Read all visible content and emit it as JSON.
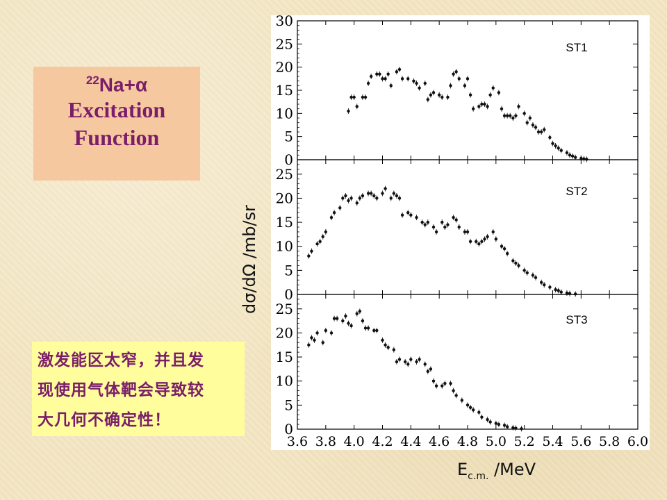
{
  "title_box": {
    "mass_number": "22",
    "reaction": "Na+α",
    "line2": "Excitation",
    "line3": "Function"
  },
  "note": {
    "lines": [
      "激发能区太窄，并且发",
      "现使用气体靶会导致较",
      "大几何不确定性！"
    ]
  },
  "axes": {
    "ylabel": "dσ/dΩ /mb/sr",
    "xlabel_main": "E",
    "xlabel_sub": "c.m.",
    "xlabel_unit": " /MeV"
  },
  "chart_data": [
    {
      "type": "scatter",
      "panel": "ST1",
      "x_range": [
        3.6,
        6.0
      ],
      "ylim": [
        0,
        30
      ],
      "y_ticks": [
        0,
        5,
        10,
        15,
        20,
        25,
        30
      ],
      "x": [
        3.96,
        3.98,
        4.0,
        4.02,
        4.06,
        4.08,
        4.1,
        4.12,
        4.16,
        4.18,
        4.2,
        4.22,
        4.24,
        4.26,
        4.3,
        4.32,
        4.34,
        4.38,
        4.42,
        4.44,
        4.46,
        4.5,
        4.52,
        4.54,
        4.56,
        4.6,
        4.62,
        4.66,
        4.68,
        4.7,
        4.72,
        4.74,
        4.78,
        4.8,
        4.82,
        4.84,
        4.88,
        4.9,
        4.92,
        4.94,
        4.96,
        4.98,
        5.02,
        5.04,
        5.06,
        5.08,
        5.1,
        5.12,
        5.14,
        5.16,
        5.2,
        5.22,
        5.24,
        5.26,
        5.28,
        5.3,
        5.32,
        5.34,
        5.38,
        5.4,
        5.42,
        5.44,
        5.46,
        5.5,
        5.52,
        5.54,
        5.56,
        5.6,
        5.62,
        5.64,
        5.66,
        5.68,
        5.7,
        5.72,
        5.74,
        5.76,
        5.8,
        5.82,
        5.84
      ],
      "y": [
        10.5,
        13.5,
        13.5,
        11.5,
        13.5,
        13.5,
        16.5,
        18.0,
        18.5,
        18.5,
        17.5,
        17.5,
        18.5,
        16.0,
        19.0,
        19.5,
        17.5,
        17.5,
        17.0,
        16.5,
        15.5,
        16.5,
        13.0,
        14.0,
        14.5,
        14.0,
        13.5,
        13.5,
        16.0,
        18.5,
        19.0,
        17.5,
        16.0,
        17.5,
        14.0,
        11.0,
        11.5,
        12.0,
        12.0,
        11.5,
        14.0,
        15.5,
        14.5,
        11.0,
        9.5,
        9.5,
        9.5,
        9.0,
        9.5,
        11.5,
        10.0,
        8.0,
        9.0,
        7.5,
        7.0,
        6.0,
        6.0,
        6.5,
        4.8,
        3.5,
        3.0,
        2.5,
        2.0,
        1.5,
        1.0,
        0.8,
        0.5,
        0.3,
        0.2,
        0.1,
        0.0,
        0.0,
        0.0,
        0.0,
        0.0,
        0.0,
        0.0,
        0.0,
        0.0
      ]
    },
    {
      "type": "scatter",
      "panel": "ST2",
      "x_range": [
        3.6,
        6.0
      ],
      "ylim": [
        0,
        28
      ],
      "y_ticks": [
        0,
        5,
        10,
        15,
        20,
        25
      ],
      "x": [
        3.68,
        3.7,
        3.74,
        3.76,
        3.78,
        3.8,
        3.84,
        3.86,
        3.9,
        3.92,
        3.94,
        3.96,
        3.98,
        4.02,
        4.04,
        4.06,
        4.1,
        4.12,
        4.14,
        4.16,
        4.2,
        4.22,
        4.26,
        4.28,
        4.3,
        4.32,
        4.34,
        4.38,
        4.4,
        4.44,
        4.48,
        4.5,
        4.52,
        4.56,
        4.58,
        4.62,
        4.64,
        4.66,
        4.7,
        4.72,
        4.74,
        4.78,
        4.8,
        4.82,
        4.86,
        4.88,
        4.9,
        4.92,
        4.94,
        4.98,
        5.0,
        5.04,
        5.06,
        5.08,
        5.12,
        5.14,
        5.16,
        5.2,
        5.22,
        5.26,
        5.28,
        5.32,
        5.34,
        5.38,
        5.42,
        5.44,
        5.46,
        5.5,
        5.52,
        5.56,
        5.6,
        5.62,
        5.66,
        5.7,
        5.72,
        5.76,
        5.8,
        5.82,
        5.84
      ],
      "y": [
        8.0,
        9.0,
        10.5,
        11.0,
        12.0,
        13.0,
        16.0,
        17.0,
        18.0,
        20.0,
        20.5,
        19.5,
        20.0,
        19.0,
        20.0,
        20.5,
        21.0,
        21.0,
        20.5,
        20.0,
        21.0,
        22.0,
        20.0,
        21.0,
        20.5,
        20.0,
        16.5,
        17.0,
        16.5,
        16.0,
        15.0,
        14.5,
        15.0,
        14.0,
        13.0,
        15.0,
        14.0,
        14.5,
        16.0,
        15.5,
        14.0,
        13.0,
        13.0,
        11.0,
        11.0,
        10.5,
        11.0,
        11.5,
        12.0,
        13.0,
        11.5,
        10.0,
        9.5,
        8.5,
        7.0,
        6.5,
        6.0,
        5.0,
        4.5,
        4.0,
        3.5,
        2.5,
        2.0,
        1.5,
        1.0,
        0.8,
        0.5,
        0.3,
        0.2,
        0.1,
        0.0,
        0.0,
        0.0,
        0.0,
        0.0,
        0.0,
        0.0,
        0.0,
        0.0
      ]
    },
    {
      "type": "scatter",
      "panel": "ST3",
      "x_range": [
        3.6,
        6.0
      ],
      "ylim": [
        0,
        28
      ],
      "y_ticks": [
        0,
        5,
        10,
        15,
        20,
        25
      ],
      "x": [
        3.68,
        3.7,
        3.72,
        3.74,
        3.78,
        3.8,
        3.84,
        3.86,
        3.88,
        3.92,
        3.94,
        3.96,
        3.98,
        4.02,
        4.04,
        4.06,
        4.08,
        4.1,
        4.14,
        4.16,
        4.2,
        4.22,
        4.24,
        4.28,
        4.3,
        4.32,
        4.36,
        4.38,
        4.4,
        4.44,
        4.46,
        4.5,
        4.52,
        4.54,
        4.56,
        4.58,
        4.62,
        4.64,
        4.68,
        4.7,
        4.72,
        4.76,
        4.8,
        4.82,
        4.84,
        4.88,
        4.9,
        4.94,
        4.96,
        5.0,
        5.02,
        5.06,
        5.08,
        5.12,
        5.14,
        5.18,
        5.2,
        5.24,
        5.26,
        5.3,
        5.32,
        5.36,
        5.4,
        5.42,
        5.44,
        5.48,
        5.5,
        5.54,
        5.56,
        5.6,
        5.64,
        5.66,
        5.7,
        5.72,
        5.76,
        5.78,
        5.82,
        5.84,
        5.86
      ],
      "y": [
        17.5,
        19.0,
        18.5,
        20.0,
        18.0,
        20.5,
        20.0,
        23.0,
        23.0,
        22.5,
        23.5,
        22.0,
        21.5,
        24.0,
        24.5,
        22.5,
        21.0,
        21.0,
        20.5,
        20.5,
        18.5,
        17.5,
        17.0,
        16.5,
        14.0,
        14.5,
        14.0,
        13.5,
        14.5,
        14.0,
        14.5,
        13.5,
        12.0,
        12.5,
        10.0,
        9.0,
        9.0,
        9.5,
        9.5,
        8.0,
        7.0,
        6.0,
        5.0,
        4.5,
        4.0,
        3.5,
        2.5,
        2.0,
        1.5,
        1.2,
        1.0,
        0.8,
        0.5,
        0.3,
        0.2,
        0.1,
        0.0,
        0.0,
        0.0,
        0.0,
        0.0,
        0.0,
        0.0,
        0.0,
        0.0,
        0.0,
        0.0,
        0.0,
        0.0,
        0.0,
        0.0,
        0.0,
        0.0,
        0.0,
        0.0,
        0.0,
        0.0,
        0.0,
        0.0
      ]
    },
    {
      "type": "scatter",
      "axis": "shared-x",
      "x_ticks": [
        3.6,
        3.8,
        4.0,
        4.2,
        4.4,
        4.6,
        4.8,
        5.0,
        5.2,
        5.4,
        5.6,
        5.8,
        6.0
      ]
    }
  ],
  "panel_labels": [
    "ST1",
    "ST2",
    "ST3"
  ]
}
